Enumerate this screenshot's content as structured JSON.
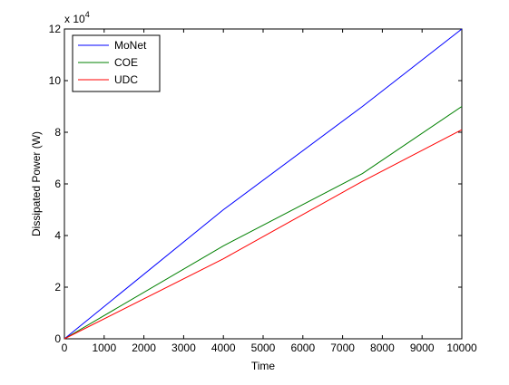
{
  "chart_data": {
    "type": "line",
    "title": "",
    "xlabel": "Time",
    "ylabel": "Dissipated Power (W)",
    "y_multiplier_label": "x 10",
    "y_multiplier_exponent": "4",
    "xlim": [
      0,
      10000
    ],
    "ylim": [
      0,
      12
    ],
    "x_ticks": [
      0,
      1000,
      2000,
      3000,
      4000,
      5000,
      6000,
      7000,
      8000,
      9000,
      10000
    ],
    "y_ticks": [
      0,
      2,
      4,
      6,
      8,
      10,
      12
    ],
    "grid": false,
    "legend_position": "top-left",
    "series": [
      {
        "name": "MoNet",
        "color": "#0000ff",
        "x": [
          0,
          4000,
          7500,
          10000
        ],
        "y": [
          0,
          5.0,
          9.0,
          12.0
        ]
      },
      {
        "name": "COE",
        "color": "#008000",
        "x": [
          0,
          4000,
          7500,
          10000
        ],
        "y": [
          0,
          3.6,
          6.4,
          9.0
        ]
      },
      {
        "name": "UDC",
        "color": "#ff0000",
        "x": [
          0,
          4000,
          7500,
          10000
        ],
        "y": [
          0,
          3.1,
          6.1,
          8.1
        ]
      }
    ]
  }
}
